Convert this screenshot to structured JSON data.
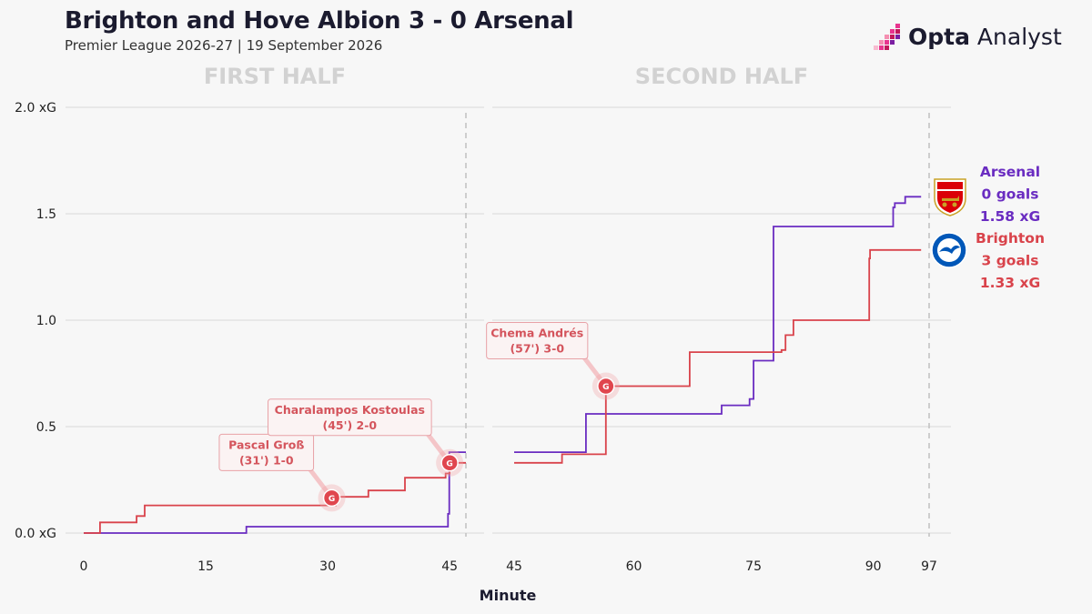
{
  "header": {
    "title": "Brighton and Hove Albion 3 - 0 Arsenal",
    "subtitle": "Premier League 2026-27 | 19 September 2026"
  },
  "logo": {
    "brand": "Opta",
    "product": "Analyst",
    "colors": [
      "#e8358f",
      "#c2185b",
      "#7b1fa2",
      "#f48fb1"
    ]
  },
  "colors": {
    "arsenal": "#6a2cc1",
    "brighton": "#d9434b",
    "grid": "#dedede",
    "marker": "#e0464e"
  },
  "chart_data": {
    "type": "line",
    "step": true,
    "y_unit": "xG",
    "xlabel": "Minute",
    "ylim": [
      0,
      2.0
    ],
    "y_ticks": [
      {
        "v": 0.0,
        "label": "0.0 xG"
      },
      {
        "v": 0.5,
        "label": "0.5"
      },
      {
        "v": 1.0,
        "label": "1.0"
      },
      {
        "v": 1.5,
        "label": "1.5"
      },
      {
        "v": 2.0,
        "label": "2.0 xG"
      }
    ],
    "grid": true,
    "halves": [
      {
        "label": "FIRST HALF",
        "xlim": [
          0,
          47
        ],
        "end_marker": 47,
        "x_ticks": [
          0,
          15,
          30,
          45
        ]
      },
      {
        "label": "SECOND HALF",
        "xlim": [
          45,
          97
        ],
        "end_marker": 97,
        "x_ticks": [
          45,
          60,
          75,
          90,
          97
        ]
      }
    ],
    "series": [
      {
        "name": "Arsenal",
        "team": "arsenal",
        "first_half": [
          [
            0,
            0.0
          ],
          [
            20,
            0.0
          ],
          [
            20,
            0.03
          ],
          [
            44.8,
            0.03
          ],
          [
            44.8,
            0.09
          ],
          [
            44.95,
            0.09
          ],
          [
            44.95,
            0.38
          ],
          [
            47,
            0.38
          ]
        ],
        "second_half": [
          [
            45,
            0.38
          ],
          [
            54,
            0.38
          ],
          [
            54,
            0.56
          ],
          [
            71,
            0.56
          ],
          [
            71,
            0.6
          ],
          [
            74.5,
            0.6
          ],
          [
            74.5,
            0.63
          ],
          [
            75,
            0.63
          ],
          [
            75,
            0.81
          ],
          [
            77.5,
            0.81
          ],
          [
            77.5,
            1.44
          ],
          [
            92.5,
            1.44
          ],
          [
            92.5,
            1.53
          ],
          [
            92.7,
            1.53
          ],
          [
            92.7,
            1.55
          ],
          [
            94,
            1.55
          ],
          [
            94,
            1.58
          ],
          [
            96,
            1.58
          ]
        ]
      },
      {
        "name": "Brighton",
        "team": "brighton",
        "first_half": [
          [
            0,
            0.0
          ],
          [
            2,
            0.0
          ],
          [
            2,
            0.05
          ],
          [
            6.5,
            0.05
          ],
          [
            6.5,
            0.08
          ],
          [
            7.5,
            0.08
          ],
          [
            7.5,
            0.13
          ],
          [
            31,
            0.13
          ],
          [
            31,
            0.17
          ],
          [
            35,
            0.17
          ],
          [
            35,
            0.2
          ],
          [
            39.5,
            0.2
          ],
          [
            39.5,
            0.26
          ],
          [
            44.5,
            0.26
          ],
          [
            44.5,
            0.28
          ],
          [
            45,
            0.28
          ],
          [
            45,
            0.33
          ],
          [
            47,
            0.33
          ]
        ],
        "second_half": [
          [
            45,
            0.33
          ],
          [
            51,
            0.33
          ],
          [
            51,
            0.37
          ],
          [
            56.5,
            0.37
          ],
          [
            56.5,
            0.69
          ],
          [
            67,
            0.69
          ],
          [
            67,
            0.85
          ],
          [
            78.5,
            0.85
          ],
          [
            78.5,
            0.86
          ],
          [
            79,
            0.86
          ],
          [
            79,
            0.93
          ],
          [
            80,
            0.93
          ],
          [
            80,
            1.0
          ],
          [
            89.5,
            1.0
          ],
          [
            89.5,
            1.29
          ],
          [
            89.6,
            1.29
          ],
          [
            89.6,
            1.33
          ],
          [
            96,
            1.33
          ]
        ]
      }
    ],
    "goals": [
      {
        "half": 0,
        "minute": 30.5,
        "xg": 0.165,
        "marker": "G",
        "player": "Pascal Groß",
        "detail": "(31') 1-0",
        "box": "left-above"
      },
      {
        "half": 0,
        "minute": 45,
        "xg": 0.33,
        "marker": "G",
        "player": "Charalampos Kostoulas",
        "detail": "(45') 2-0",
        "box": "left-above"
      },
      {
        "half": 1,
        "minute": 56.5,
        "xg": 0.69,
        "marker": "G",
        "player": "Chema Andrés",
        "detail": "(57') 3-0",
        "box": "left-above"
      }
    ],
    "legend": [
      {
        "team": "Arsenal",
        "goals": "0 goals",
        "xg": "1.58 xG",
        "badge": "arsenal-crest-icon"
      },
      {
        "team": "Brighton",
        "goals": "3 goals",
        "xg": "1.33 xG",
        "badge": "brighton-crest-icon"
      }
    ]
  }
}
